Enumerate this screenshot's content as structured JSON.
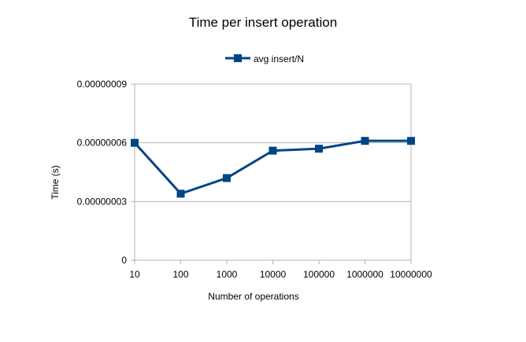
{
  "chart_data": {
    "type": "line",
    "title": "Time per insert operation",
    "xlabel": "Number of operations",
    "ylabel": "Time (s)",
    "categories": [
      "10",
      "100",
      "1000",
      "10000",
      "100000",
      "1000000",
      "10000000"
    ],
    "series": [
      {
        "name": "avg insert/N",
        "color": "#004586",
        "marker": "square",
        "values": [
          6e-08,
          3.4e-08,
          4.2e-08,
          5.6e-08,
          5.7e-08,
          6.1e-08,
          6.1e-08
        ]
      }
    ],
    "ylim": [
      0,
      9e-08
    ],
    "yticks": [
      {
        "value": 0,
        "label": "0"
      },
      {
        "value": 3e-08,
        "label": "0.00000003"
      },
      {
        "value": 6e-08,
        "label": "0.00000006"
      },
      {
        "value": 9e-08,
        "label": "0.00000009"
      }
    ],
    "grid": true,
    "legend_position": "top"
  }
}
